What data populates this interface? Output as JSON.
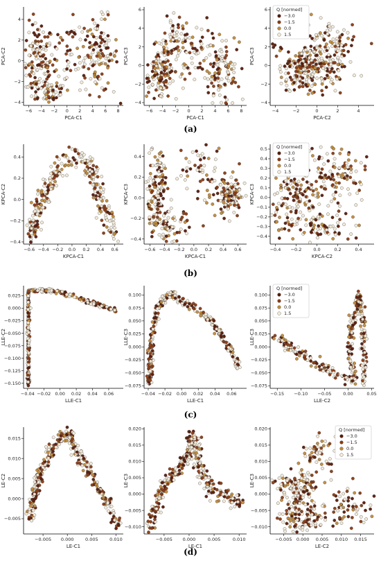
{
  "colors": {
    "q_-3.0": "#5a1a08",
    "q_-1.5": "#8b3a12",
    "q_0.0": "#c08a3a",
    "q_1.5": "#f3ead8",
    "edge": "#444444"
  },
  "legend": {
    "title": "Q [normed]",
    "entries": [
      "−3.0",
      "−1.5",
      "0.0",
      "1.5"
    ]
  },
  "panel_labels": [
    "(a)",
    "(b)",
    "(c)",
    "(d)"
  ],
  "chart_data": [
    {
      "type": "scatter",
      "panel": "(a)",
      "xlabel": "PCA-C1",
      "ylabel": "PCA-C2",
      "xlim": [
        -6.8,
        8.8
      ],
      "ylim": [
        -4.3,
        5.2
      ],
      "xticks": [
        "−6",
        "−4",
        "−2",
        "0",
        "2",
        "4",
        "6",
        "8"
      ],
      "xtick_values": [
        -6,
        -4,
        -2,
        0,
        2,
        4,
        6,
        8
      ],
      "yticks": [
        "−4",
        "−2",
        "0",
        "2",
        "4"
      ],
      "ytick_values": [
        -4,
        -2,
        0,
        2,
        4
      ],
      "clusters": [
        [
          -4.5,
          0.0,
          1.2,
          1.8,
          120
        ],
        [
          -3.0,
          -2.8,
          1.8,
          0.7,
          60
        ],
        [
          0.5,
          1.0,
          2.5,
          2.0,
          70
        ],
        [
          5.0,
          0.5,
          1.5,
          1.8,
          110
        ]
      ],
      "legend": false
    },
    {
      "type": "scatter",
      "panel": "(a)",
      "xlabel": "PCA-C1",
      "ylabel": "PCA-C3",
      "xlim": [
        -6.8,
        8.8
      ],
      "ylim": [
        -4.3,
        6.3
      ],
      "xticks": [
        "−6",
        "−4",
        "−2",
        "0",
        "2",
        "4",
        "6",
        "8"
      ],
      "xtick_values": [
        -6,
        -4,
        -2,
        0,
        2,
        4,
        6,
        8
      ],
      "yticks": [
        "−4",
        "−2",
        "0",
        "2",
        "4",
        "6"
      ],
      "ytick_values": [
        -4,
        -2,
        0,
        2,
        4,
        6
      ],
      "clusters": [
        [
          -4.5,
          -1.0,
          1.3,
          1.3,
          130
        ],
        [
          0.0,
          1.5,
          2.5,
          1.5,
          90
        ],
        [
          5.0,
          -0.8,
          1.5,
          1.8,
          110
        ],
        [
          -2.0,
          3.0,
          2.0,
          1.2,
          30
        ]
      ],
      "legend": false
    },
    {
      "type": "scatter",
      "panel": "(a)",
      "xlabel": "PCA-C2",
      "ylabel": "PCA-C3",
      "xlim": [
        -4.5,
        5.5
      ],
      "ylim": [
        -4.3,
        6.3
      ],
      "xticks": [
        "−4",
        "−2",
        "0",
        "2",
        "4"
      ],
      "xtick_values": [
        -4,
        -2,
        0,
        2,
        4
      ],
      "yticks": [
        "−4",
        "−2",
        "0",
        "2",
        "4",
        "6"
      ],
      "ytick_values": [
        -4,
        -2,
        0,
        2,
        4,
        6
      ],
      "clusters": [
        [
          -1.5,
          -0.5,
          1.2,
          1.3,
          160
        ],
        [
          0.8,
          0.5,
          1.5,
          1.6,
          140
        ],
        [
          1.5,
          3.0,
          1.5,
          1.2,
          40
        ]
      ],
      "legend": true
    },
    {
      "type": "scatter",
      "panel": "(b)",
      "xlabel": "KPCA-C1",
      "ylabel": "KPCA-C2",
      "xlim": [
        -0.68,
        0.72
      ],
      "ylim": [
        -0.42,
        0.52
      ],
      "xticks": [
        "−0.6",
        "−0.4",
        "−0.2",
        "0.0",
        "0.2",
        "0.4",
        "0.6"
      ],
      "xtick_values": [
        -0.6,
        -0.4,
        -0.2,
        0.0,
        0.2,
        0.4,
        0.6
      ],
      "yticks": [
        "−0.4",
        "−0.2",
        "0.0",
        "0.2",
        "0.4"
      ],
      "ytick_values": [
        -0.4,
        -0.2,
        0.0,
        0.2,
        0.4
      ],
      "curve": [
        [
          -0.6,
          -0.35
        ],
        [
          -0.45,
          -0.05
        ],
        [
          -0.3,
          0.2
        ],
        [
          -0.1,
          0.38
        ],
        [
          0.1,
          0.42
        ],
        [
          0.25,
          0.3
        ],
        [
          0.4,
          0.0
        ],
        [
          0.5,
          -0.2
        ],
        [
          0.6,
          -0.35
        ]
      ],
      "curve_count": 300,
      "curve_spread": 0.05,
      "legend": false
    },
    {
      "type": "scatter",
      "panel": "(b)",
      "xlabel": "KPCA-C1",
      "ylabel": "KPCA-C3",
      "xlim": [
        -0.68,
        0.72
      ],
      "ylim": [
        -0.45,
        0.52
      ],
      "xticks": [
        "−0.6",
        "−0.4",
        "−0.2",
        "0.0",
        "0.2",
        "0.4",
        "0.6"
      ],
      "xtick_values": [
        -0.6,
        -0.4,
        -0.2,
        0.0,
        0.2,
        0.4,
        0.6
      ],
      "yticks": [
        "−0.4",
        "−0.2",
        "0.0",
        "0.2",
        "0.4"
      ],
      "ytick_values": [
        -0.4,
        -0.2,
        0.0,
        0.2,
        0.4
      ],
      "clusters": [
        [
          -0.5,
          0.0,
          0.07,
          0.25,
          150
        ],
        [
          -0.3,
          -0.3,
          0.12,
          0.08,
          60
        ],
        [
          0.1,
          0.25,
          0.2,
          0.15,
          60
        ],
        [
          0.5,
          0.0,
          0.1,
          0.1,
          110
        ]
      ],
      "legend": false
    },
    {
      "type": "scatter",
      "panel": "(b)",
      "xlabel": "KPCA-C2",
      "ylabel": "KPCA-C3",
      "xlim": [
        -0.45,
        0.55
      ],
      "ylim": [
        -0.48,
        0.55
      ],
      "xticks": [
        "−0.4",
        "−0.2",
        "0.0",
        "0.2",
        "0.4"
      ],
      "xtick_values": [
        -0.4,
        -0.2,
        0.0,
        0.2,
        0.4
      ],
      "yticks": [
        "−0.4",
        "−0.3",
        "−0.2",
        "−0.1",
        "0.0",
        "0.1",
        "0.2",
        "0.3",
        "0.4",
        "0.5"
      ],
      "ytick_values": [
        -0.4,
        -0.3,
        -0.2,
        -0.1,
        0.0,
        0.1,
        0.2,
        0.3,
        0.4,
        0.5
      ],
      "clusters": [
        [
          -0.2,
          0.0,
          0.12,
          0.15,
          120
        ],
        [
          0.2,
          0.25,
          0.15,
          0.15,
          120
        ],
        [
          0.0,
          -0.3,
          0.25,
          0.08,
          100
        ]
      ],
      "legend": true
    },
    {
      "type": "scatter",
      "panel": "(c)",
      "xlabel": "LLE-C1",
      "ylabel": "LLE-C2",
      "xlim": [
        -0.045,
        0.078
      ],
      "ylim": [
        -0.16,
        0.045
      ],
      "xticks": [
        "−0.04",
        "−0.02",
        "0.00",
        "0.02",
        "0.04",
        "0.06"
      ],
      "xtick_values": [
        -0.04,
        -0.02,
        0.0,
        0.02,
        0.04,
        0.06
      ],
      "yticks": [
        "−0.150",
        "−0.125",
        "−0.100",
        "−0.075",
        "−0.050",
        "−0.025",
        "0.000",
        "0.025"
      ],
      "ytick_values": [
        -0.15,
        -0.125,
        -0.1,
        -0.075,
        -0.05,
        -0.025,
        0.0,
        0.025
      ],
      "curve": [
        [
          -0.039,
          -0.155
        ],
        [
          -0.039,
          0.035
        ],
        [
          -0.02,
          0.036
        ],
        [
          0.0,
          0.032
        ],
        [
          0.02,
          0.022
        ],
        [
          0.04,
          0.01
        ],
        [
          0.07,
          -0.004
        ]
      ],
      "curve_count": 340,
      "curve_spread": 0.0018,
      "legend": false
    },
    {
      "type": "scatter",
      "panel": "(c)",
      "xlabel": "LLE-C1",
      "ylabel": "LLE-C3",
      "xlim": [
        -0.045,
        0.078
      ],
      "ylim": [
        -0.08,
        0.118
      ],
      "xticks": [
        "−0.04",
        "−0.02",
        "0.00",
        "0.02",
        "0.04",
        "0.06"
      ],
      "xtick_values": [
        -0.04,
        -0.02,
        0.0,
        0.02,
        0.04,
        0.06
      ],
      "yticks": [
        "−0.075",
        "−0.050",
        "−0.025",
        "0.000",
        "0.025",
        "0.050",
        "0.075",
        "0.100"
      ],
      "ytick_values": [
        -0.075,
        -0.05,
        -0.025,
        0.0,
        0.025,
        0.05,
        0.075,
        0.1
      ],
      "curve": [
        [
          -0.039,
          -0.075
        ],
        [
          -0.037,
          0.0
        ],
        [
          -0.03,
          0.07
        ],
        [
          -0.02,
          0.095
        ],
        [
          -0.01,
          0.1
        ],
        [
          0.0,
          0.09
        ],
        [
          0.03,
          0.06
        ],
        [
          0.05,
          0.02
        ],
        [
          0.07,
          -0.04
        ]
      ],
      "curve_count": 320,
      "curve_spread": 0.004,
      "legend": false
    },
    {
      "type": "scatter",
      "panel": "(c)",
      "xlabel": "LLE-C2",
      "ylabel": "LLE-C3",
      "xlim": [
        -0.165,
        0.055
      ],
      "ylim": [
        -0.08,
        0.118
      ],
      "xticks": [
        "−0.15",
        "−0.10",
        "−0.05",
        "0.00",
        "0.05"
      ],
      "xtick_values": [
        -0.15,
        -0.1,
        -0.05,
        0.0,
        0.05
      ],
      "yticks": [
        "−0.075",
        "−0.050",
        "−0.025",
        "0.000",
        "0.025",
        "0.050",
        "0.075",
        "0.100"
      ],
      "ytick_values": [
        -0.075,
        -0.05,
        -0.025,
        0.0,
        0.025,
        0.05,
        0.075,
        0.1
      ],
      "curve": [
        [
          -0.155,
          0.02
        ],
        [
          -0.08,
          -0.025
        ],
        [
          -0.02,
          -0.055
        ],
        [
          0.015,
          -0.065
        ],
        [
          0.0,
          -0.02
        ],
        [
          0.01,
          0.05
        ],
        [
          0.025,
          0.1
        ],
        [
          0.032,
          0.03
        ],
        [
          0.034,
          -0.07
        ]
      ],
      "curve_count": 330,
      "curve_spread": 0.005,
      "legend": true
    },
    {
      "type": "scatter",
      "panel": "(d)",
      "xlabel": "LE-C1",
      "ylabel": "LE-C2",
      "xlim": [
        -0.009,
        0.0115
      ],
      "ylim": [
        -0.0088,
        0.0178
      ],
      "xticks": [
        "−0.005",
        "0.000",
        "0.005",
        "0.010"
      ],
      "xtick_values": [
        -0.005,
        0.0,
        0.005,
        0.01
      ],
      "yticks": [
        "−0.005",
        "0.000",
        "0.005",
        "0.010",
        "0.015"
      ],
      "ytick_values": [
        -0.005,
        0.0,
        0.005,
        0.01,
        0.015
      ],
      "curve": [
        [
          -0.0078,
          -0.005
        ],
        [
          -0.006,
          0.005
        ],
        [
          -0.003,
          0.013
        ],
        [
          0.0,
          0.0168
        ],
        [
          0.002,
          0.012
        ],
        [
          0.005,
          0.005
        ],
        [
          0.008,
          0.0
        ],
        [
          0.0105,
          -0.007
        ]
      ],
      "curve_count": 330,
      "curve_spread": 0.0009,
      "legend": false
    },
    {
      "type": "scatter",
      "panel": "(d)",
      "xlabel": "LE-C1",
      "ylabel": "LE-C3",
      "xlim": [
        -0.009,
        0.0115
      ],
      "ylim": [
        -0.0122,
        0.0205
      ],
      "xticks": [
        "−0.005",
        "0.000",
        "0.005",
        "0.010"
      ],
      "xtick_values": [
        -0.005,
        0.0,
        0.005,
        0.01
      ],
      "yticks": [
        "−0.010",
        "−0.005",
        "0.000",
        "0.005",
        "0.010",
        "0.015",
        "0.020"
      ],
      "ytick_values": [
        -0.01,
        -0.005,
        0.0,
        0.005,
        0.01,
        0.015,
        0.02
      ],
      "curve": [
        [
          -0.0078,
          -0.01
        ],
        [
          -0.006,
          0.0
        ],
        [
          -0.003,
          0.006
        ],
        [
          0.0,
          0.012
        ],
        [
          0.001,
          0.018
        ],
        [
          0.002,
          0.008
        ],
        [
          0.004,
          0.002
        ],
        [
          0.007,
          0.0
        ],
        [
          0.0105,
          -0.004
        ]
      ],
      "curve_count": 330,
      "curve_spread": 0.0013,
      "legend": false
    },
    {
      "type": "scatter",
      "panel": "(d)",
      "xlabel": "LE-C2",
      "ylabel": "LE-C3",
      "xlim": [
        -0.0085,
        0.0185
      ],
      "ylim": [
        -0.0122,
        0.0205
      ],
      "xticks": [
        "−0.005",
        "0.000",
        "0.005",
        "0.010",
        "0.015"
      ],
      "xtick_values": [
        -0.005,
        0.0,
        0.005,
        0.01,
        0.015
      ],
      "yticks": [
        "−0.010",
        "−0.005",
        "0.000",
        "0.005",
        "0.010",
        "0.015",
        "0.020"
      ],
      "ytick_values": [
        -0.01,
        -0.005,
        0.0,
        0.005,
        0.01,
        0.015,
        0.02
      ],
      "clusters": [
        [
          -0.002,
          0.002,
          0.0025,
          0.003,
          120
        ],
        [
          0.0,
          -0.007,
          0.003,
          0.0025,
          110
        ],
        [
          0.004,
          0.012,
          0.0025,
          0.004,
          60
        ],
        [
          0.012,
          -0.004,
          0.0035,
          0.003,
          60
        ]
      ],
      "legend": true
    }
  ]
}
